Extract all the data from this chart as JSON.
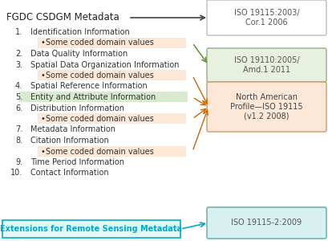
{
  "title_left": "FGDC CSDGM Metadata",
  "items": [
    {
      "num": "1.",
      "text": "Identification Information",
      "bullet": true,
      "bullet_text": "Some coded domain values",
      "bullet_highlight": true
    },
    {
      "num": "2.",
      "text": "Data Quality Information",
      "bullet": false
    },
    {
      "num": "3.",
      "text": "Spatial Data Organization Information",
      "bullet": true,
      "bullet_text": "Some coded domain values",
      "bullet_highlight": true
    },
    {
      "num": "4.",
      "text": "Spatial Reference Information",
      "bullet": false
    },
    {
      "num": "5.",
      "text": "Entity and Attribute Information",
      "bullet": false,
      "highlight_item": true
    },
    {
      "num": "6.",
      "text": "Distribution Information",
      "bullet": true,
      "bullet_text": "Some coded domain values",
      "bullet_highlight": true
    },
    {
      "num": "7.",
      "text": "Metadata Information",
      "bullet": false
    },
    {
      "num": "8.",
      "text": "Citation Information",
      "bullet": true,
      "bullet_text": "Some coded domain values",
      "bullet_highlight": true
    },
    {
      "num": "9.",
      "text": "Time Period Information",
      "bullet": false
    },
    {
      "num": "10.",
      "text": "Contact Information",
      "bullet": false
    }
  ],
  "extension_text": "Extensions for Remote Sensing Metadata",
  "boxes": [
    {
      "label": "ISO 19115:2003/\nCor.1 2006",
      "bg": "#ffffff",
      "border": "#bbbbbb",
      "text_color": "#555555"
    },
    {
      "label": "ISO 19110:2005/\nAmd.1 2011",
      "bg": "#e8f0e0",
      "border": "#99aa88",
      "text_color": "#555555"
    },
    {
      "label": "North American\nProfile—ISO 19115\n(v1.2 2008)",
      "bg": "#fde8d8",
      "border": "#cc9966",
      "text_color": "#444444"
    },
    {
      "label": "ISO 19115-2:2009",
      "bg": "#d8f0f0",
      "border": "#55aaaa",
      "text_color": "#555555"
    }
  ],
  "highlight_bullet_color": "#fde8d8",
  "highlight_item_color": "#d8ead0",
  "arrow_color_black": "#444444",
  "arrow_color_orange": "#cc6600",
  "arrow_color_green": "#669933",
  "arrow_color_cyan": "#00aacc",
  "bg_color": "#ffffff",
  "font_size": 7.0,
  "title_font_size": 8.5
}
